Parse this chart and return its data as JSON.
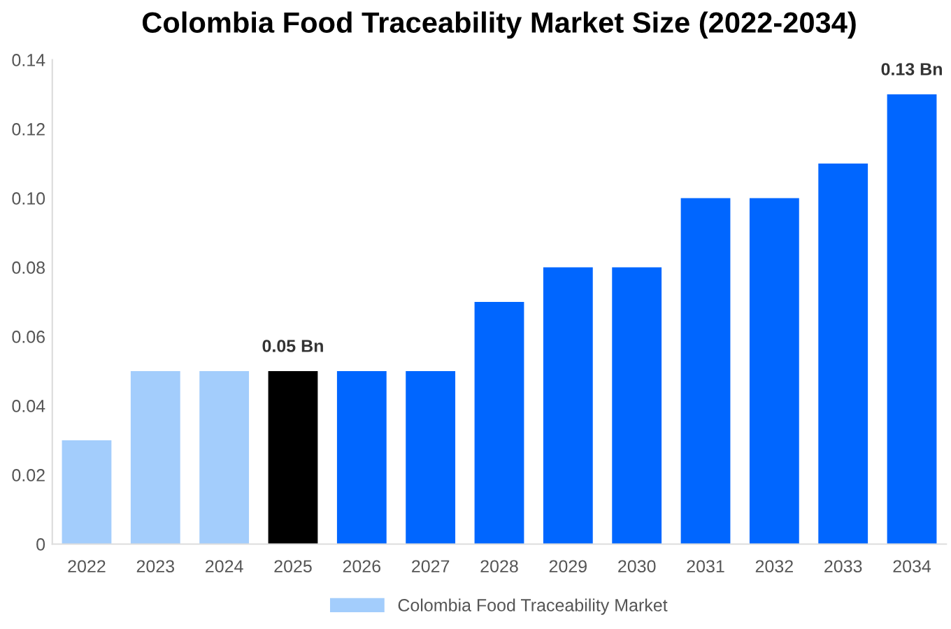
{
  "chart_data": {
    "type": "bar",
    "title": "Colombia Food Traceability Market Size (2022-2034)",
    "categories": [
      "2022",
      "2023",
      "2024",
      "2025",
      "2026",
      "2027",
      "2028",
      "2029",
      "2030",
      "2031",
      "2032",
      "2033",
      "2034"
    ],
    "series": [
      {
        "name": "Colombia Food Traceability Market",
        "color": "#a3cdfc",
        "colors": [
          "#a3cdfc",
          "#a3cdfc",
          "#a3cdfc",
          "#000000",
          "#0066ff",
          "#0066ff",
          "#0066ff",
          "#0066ff",
          "#0066ff",
          "#0066ff",
          "#0066ff",
          "#0066ff",
          "#0066ff"
        ],
        "values": [
          0.03,
          0.05,
          0.05,
          0.05,
          0.05,
          0.05,
          0.07,
          0.08,
          0.08,
          0.1,
          0.1,
          0.11,
          0.13
        ],
        "value_labels": [
          null,
          null,
          null,
          "0.05 Bn",
          null,
          null,
          null,
          null,
          null,
          null,
          null,
          null,
          "0.13 Bn"
        ]
      }
    ],
    "ylim": [
      0,
      0.14
    ],
    "yticks": [
      0,
      0.02,
      0.04,
      0.06,
      0.08,
      {
        "value": 0.1,
        "label": "0.10"
      },
      0.12,
      0.14
    ],
    "grid": false,
    "legend": "bottom"
  }
}
